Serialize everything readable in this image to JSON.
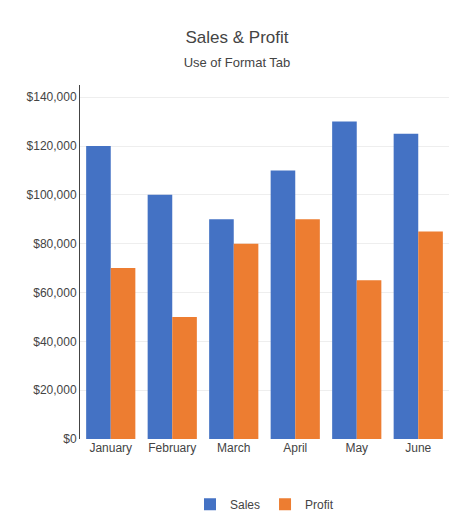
{
  "chart_data": {
    "type": "bar",
    "title": "Sales & Profit",
    "subtitle": "Use of Format Tab",
    "categories": [
      "January",
      "February",
      "March",
      "April",
      "May",
      "June"
    ],
    "series": [
      {
        "name": "Sales",
        "color": "#4472C4",
        "values": [
          120000,
          100000,
          90000,
          110000,
          130000,
          125000
        ]
      },
      {
        "name": "Profit",
        "color": "#ED7D31",
        "values": [
          70000,
          50000,
          80000,
          90000,
          65000,
          85000
        ]
      }
    ],
    "ylim": [
      0,
      145000
    ],
    "yticks": [
      {
        "value": 0,
        "label": "$0"
      },
      {
        "value": 20000,
        "label": "$20,000"
      },
      {
        "value": 40000,
        "label": "$40,000"
      },
      {
        "value": 60000,
        "label": "$60,000"
      },
      {
        "value": 80000,
        "label": "$80,000"
      },
      {
        "value": 100000,
        "label": "$100,000"
      },
      {
        "value": 120000,
        "label": "$120,000"
      },
      {
        "value": 140000,
        "label": "$140,000"
      }
    ],
    "grid": true,
    "legend": "bottom"
  }
}
